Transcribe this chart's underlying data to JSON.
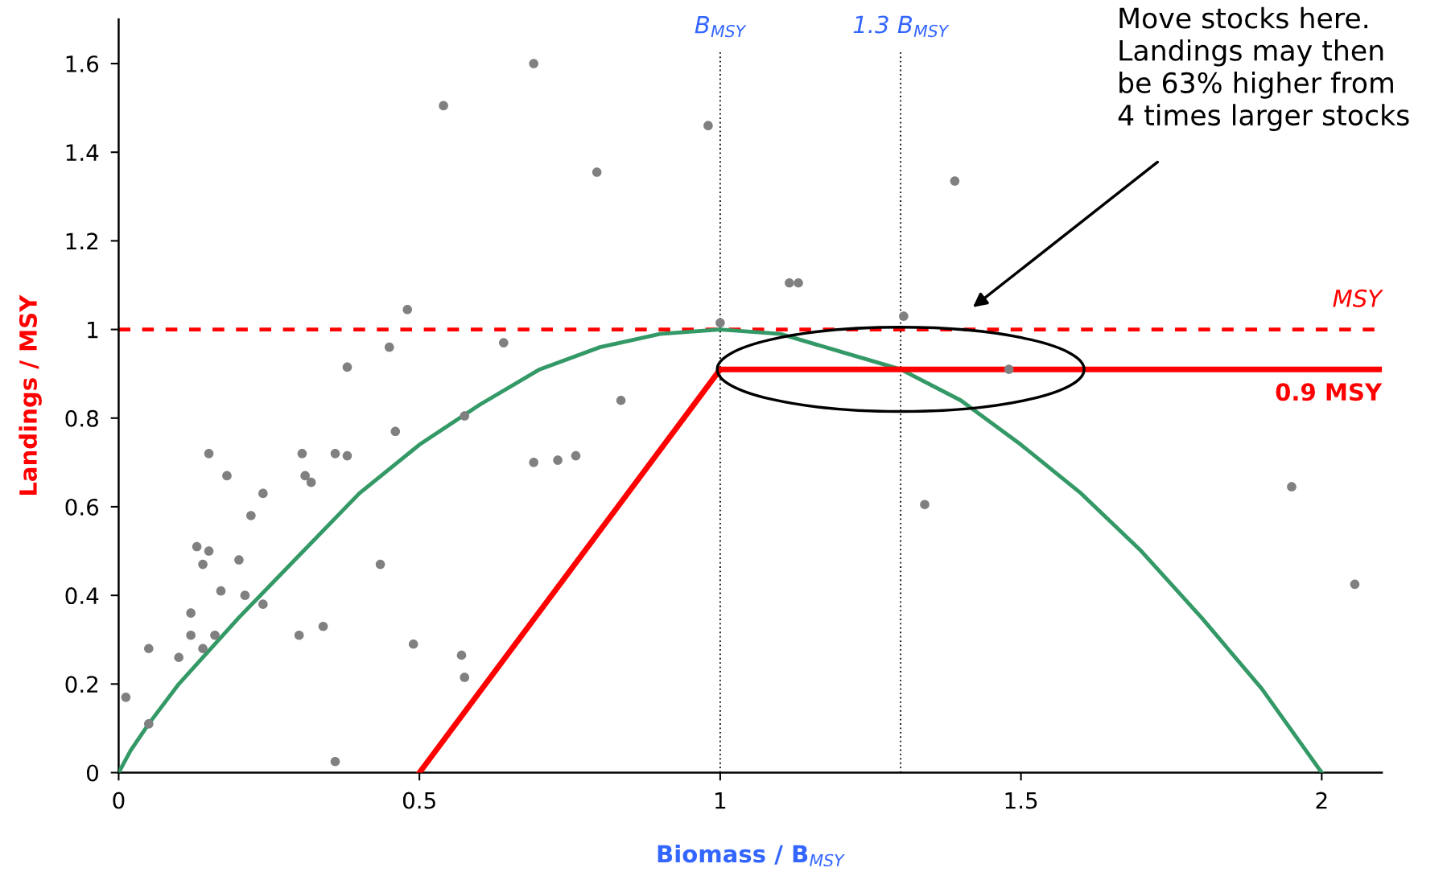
{
  "chart_data": {
    "type": "scatter",
    "xlabel": "Biomass / B$_{MSY}$",
    "ylabel": "Landings / MSY",
    "xlim": [
      0,
      2.1
    ],
    "ylim": [
      0,
      1.7
    ],
    "xticks": [
      0,
      0.5,
      1,
      1.5,
      2
    ],
    "yticks": [
      0,
      0.2,
      0.4,
      0.6,
      0.8,
      1,
      1.2,
      1.4,
      1.6
    ],
    "grid": false,
    "legend": false,
    "series": [
      {
        "color": "#808080",
        "marker": "circle",
        "x": [
          0.012,
          0.05,
          0.05,
          0.1,
          0.12,
          0.12,
          0.13,
          0.14,
          0.14,
          0.15,
          0.15,
          0.16,
          0.17,
          0.18,
          0.2,
          0.21,
          0.22,
          0.24,
          0.24,
          0.3,
          0.305,
          0.31,
          0.32,
          0.34,
          0.36,
          0.36,
          0.38,
          0.38,
          0.435,
          0.45,
          0.46,
          0.48,
          0.49,
          0.54,
          0.57,
          0.575,
          0.575,
          0.64,
          0.69,
          0.69,
          0.73,
          0.76,
          0.795,
          0.835,
          0.98,
          1.0,
          1.115,
          1.13,
          1.305,
          1.34,
          1.39,
          1.48,
          1.95,
          2.055
        ],
        "values": [
          0.17,
          0.28,
          0.11,
          0.26,
          0.36,
          0.31,
          0.51,
          0.47,
          0.28,
          0.72,
          0.5,
          0.31,
          0.41,
          0.67,
          0.48,
          0.4,
          0.58,
          0.38,
          0.63,
          0.31,
          0.72,
          0.67,
          0.655,
          0.33,
          0.025,
          0.72,
          0.715,
          0.915,
          0.47,
          0.96,
          0.77,
          1.045,
          0.29,
          1.505,
          0.265,
          0.805,
          0.215,
          0.97,
          1.6,
          0.7,
          0.705,
          0.715,
          1.355,
          0.84,
          1.46,
          1.015,
          1.105,
          1.105,
          1.03,
          0.605,
          1.335,
          0.91,
          0.645,
          0.425
        ]
      },
      {
        "type": "line",
        "color": "#339966",
        "line_style": "solid",
        "marker": "none",
        "x": [
          0,
          0.02,
          0.05,
          0.1,
          0.2,
          0.3,
          0.4,
          0.5,
          0.6,
          0.7,
          0.8,
          0.9,
          1.0,
          1.1,
          1.2,
          1.3,
          1.4,
          1.5,
          1.6,
          1.7,
          1.8,
          1.9,
          2.0
        ],
        "values": [
          0,
          0.05,
          0.11,
          0.2,
          0.35,
          0.49,
          0.63,
          0.74,
          0.83,
          0.91,
          0.96,
          0.99,
          1.0,
          0.99,
          0.95,
          0.91,
          0.84,
          0.74,
          0.63,
          0.5,
          0.35,
          0.19,
          0
        ]
      },
      {
        "type": "line",
        "name": "0.9 MSY",
        "color": "#ff0000",
        "line_style": "solid",
        "marker": "none",
        "x": [
          0.5,
          1.0,
          2.1
        ],
        "values": [
          0,
          0.91,
          0.91
        ]
      }
    ],
    "ref_lines": [
      {
        "axis": "y",
        "value": 1,
        "label": "MSY",
        "color": "#ff0000",
        "line_style": "dashed"
      },
      {
        "axis": "x",
        "value": 1,
        "label": "B$_{MSY}$",
        "color": "#000000",
        "line_style": "dotted"
      },
      {
        "axis": "x",
        "value": 1.3,
        "label": "1.3 B$_{MSY}$",
        "color": "#000000",
        "line_style": "dotted"
      }
    ],
    "annotations": [
      "Move stocks here.\nLandings may then\nbe 63% higher from\n4 times larger stocks"
    ]
  }
}
